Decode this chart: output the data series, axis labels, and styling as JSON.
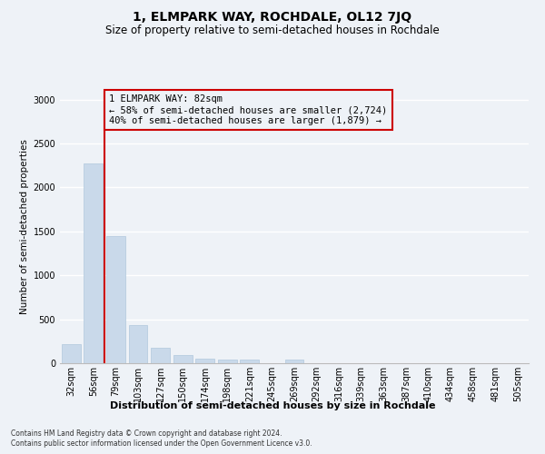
{
  "title": "1, ELMPARK WAY, ROCHDALE, OL12 7JQ",
  "subtitle": "Size of property relative to semi-detached houses in Rochdale",
  "xlabel": "Distribution of semi-detached houses by size in Rochdale",
  "ylabel": "Number of semi-detached properties",
  "footnote1": "Contains HM Land Registry data © Crown copyright and database right 2024.",
  "footnote2": "Contains public sector information licensed under the Open Government Licence v3.0.",
  "categories": [
    "32sqm",
    "56sqm",
    "79sqm",
    "103sqm",
    "127sqm",
    "150sqm",
    "174sqm",
    "198sqm",
    "221sqm",
    "245sqm",
    "269sqm",
    "292sqm",
    "316sqm",
    "339sqm",
    "363sqm",
    "387sqm",
    "410sqm",
    "434sqm",
    "458sqm",
    "481sqm",
    "505sqm"
  ],
  "values": [
    220,
    2270,
    1450,
    430,
    175,
    95,
    55,
    45,
    40,
    0,
    45,
    0,
    0,
    0,
    0,
    0,
    0,
    0,
    0,
    0,
    0
  ],
  "bar_color": "#c9d9ea",
  "bar_edgecolor": "#b0c8dc",
  "annotation_title": "1 ELMPARK WAY: 82sqm",
  "annotation_line1": "← 58% of semi-detached houses are smaller (2,724)",
  "annotation_line2": "40% of semi-detached houses are larger (1,879) →",
  "vline_color": "#cc0000",
  "vline_x_index": 2,
  "annotation_box_edgecolor": "#cc0000",
  "ylim": [
    0,
    3100
  ],
  "yticks": [
    0,
    500,
    1000,
    1500,
    2000,
    2500,
    3000
  ],
  "background_color": "#eef2f7",
  "grid_color": "#ffffff",
  "title_fontsize": 10,
  "subtitle_fontsize": 8.5,
  "ylabel_fontsize": 7.5,
  "xlabel_fontsize": 8,
  "tick_fontsize": 7,
  "annot_fontsize": 7.5,
  "footnote_fontsize": 5.5
}
